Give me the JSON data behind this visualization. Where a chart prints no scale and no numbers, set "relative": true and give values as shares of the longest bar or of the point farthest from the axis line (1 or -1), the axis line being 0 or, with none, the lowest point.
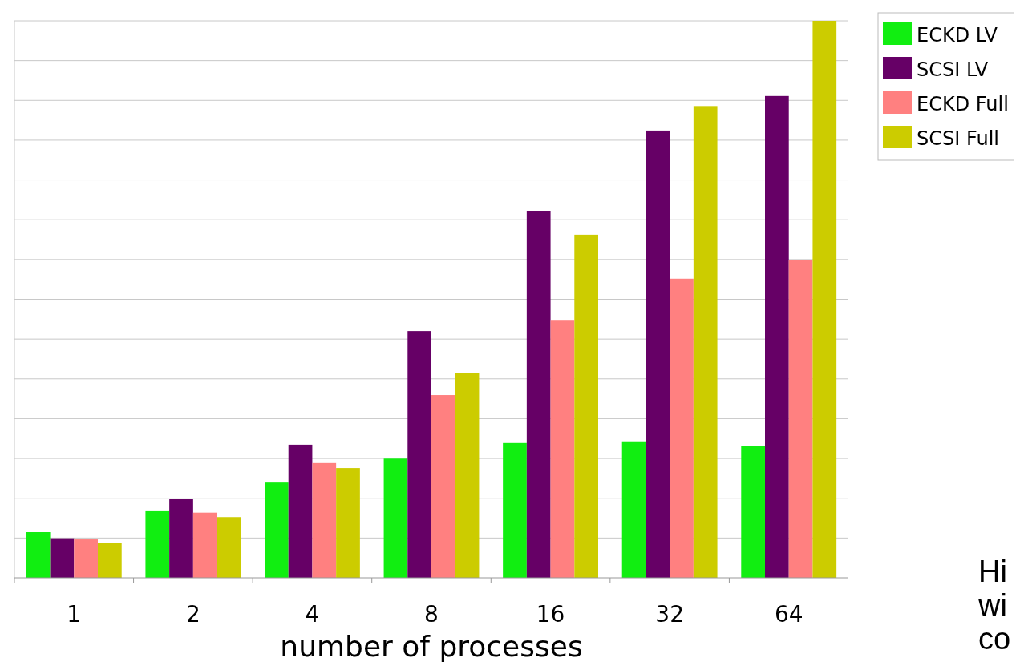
{
  "chart_data": {
    "type": "bar",
    "relative": true,
    "xlabel": "number of processes",
    "categories": [
      "1",
      "2",
      "4",
      "8",
      "16",
      "32",
      "64"
    ],
    "series": [
      {
        "name": "ECKD LV",
        "color": "#11ee11",
        "values": [
          0.082,
          0.121,
          0.171,
          0.214,
          0.242,
          0.245,
          0.237
        ]
      },
      {
        "name": "SCSI LV",
        "color": "#660066",
        "values": [
          0.071,
          0.141,
          0.239,
          0.443,
          0.659,
          0.803,
          0.865
        ]
      },
      {
        "name": "ECKD Full",
        "color": "#ff8080",
        "values": [
          0.069,
          0.117,
          0.206,
          0.328,
          0.463,
          0.537,
          0.571
        ]
      },
      {
        "name": "SCSI Full",
        "color": "#cccc00",
        "values": [
          0.062,
          0.109,
          0.197,
          0.367,
          0.616,
          0.847,
          1
        ]
      }
    ],
    "grid": "y",
    "legend": "top right",
    "annotations": [
      "Hi",
      "wi",
      "co"
    ]
  }
}
